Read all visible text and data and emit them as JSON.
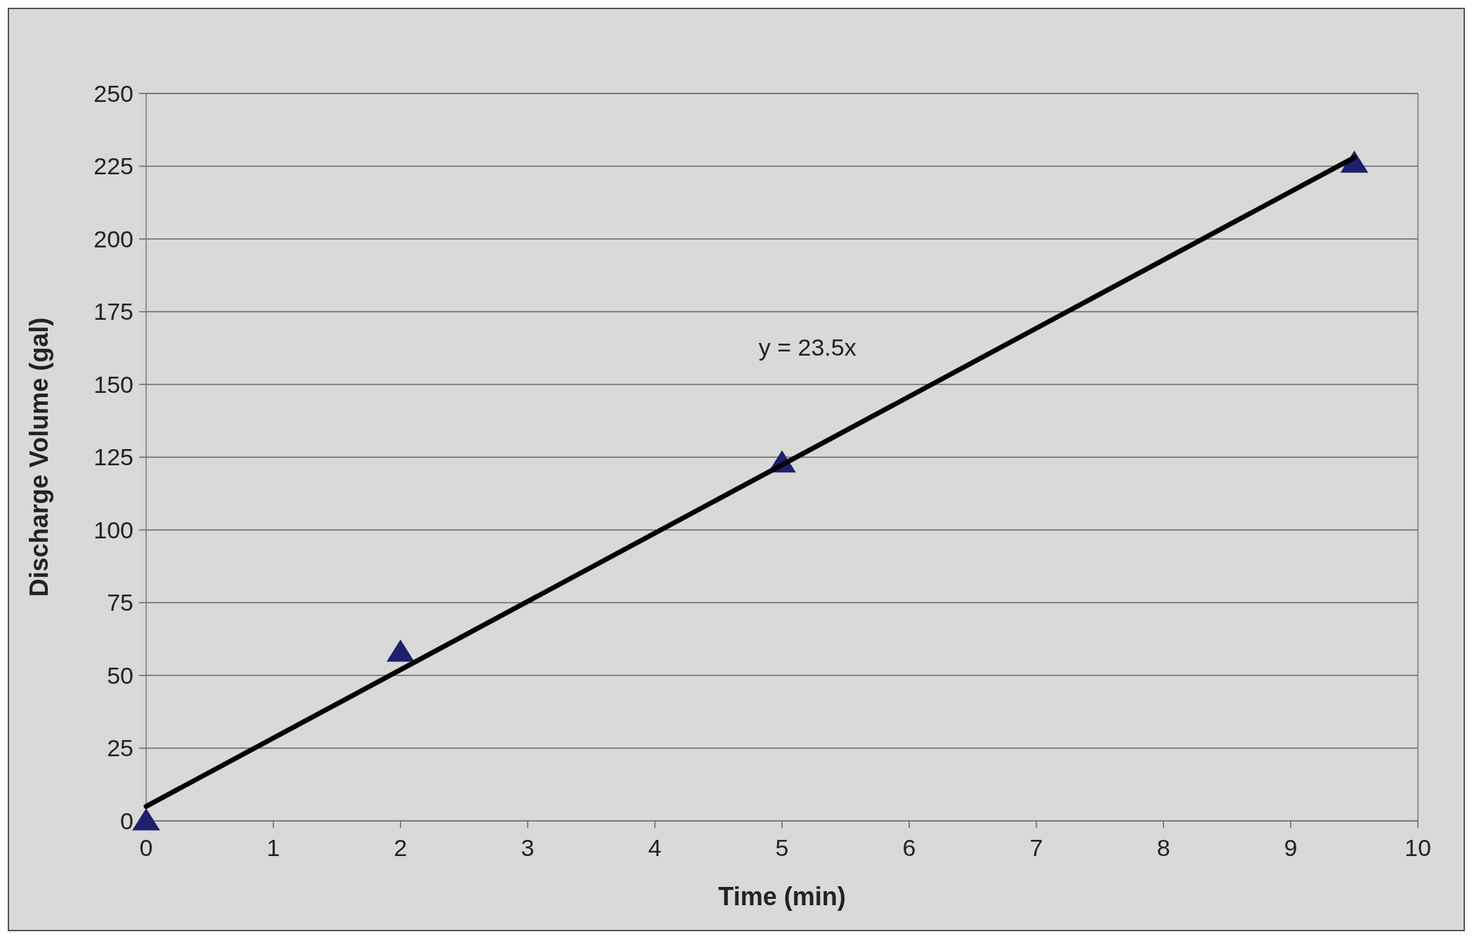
{
  "chart_data": {
    "type": "scatter",
    "xlabel": "Time (min)",
    "ylabel": "Discharge Volume (gal)",
    "xlim": [
      0,
      10
    ],
    "xticks": [
      0,
      1,
      2,
      3,
      4,
      5,
      6,
      7,
      8,
      9,
      10
    ],
    "ylim": [
      0,
      250
    ],
    "yticks": [
      0,
      25,
      50,
      75,
      100,
      125,
      150,
      175,
      200,
      225,
      250
    ],
    "grid": "y",
    "marker": "triangle",
    "series": [
      {
        "color": "#1f1f6e",
        "x": [
          0,
          2,
          5,
          9.5
        ],
        "values": [
          0,
          58,
          123,
          226
        ]
      },
      {
        "type": "line",
        "color": "#000000",
        "x": [
          0,
          9.5
        ],
        "values": [
          5,
          228
        ],
        "marker": "none",
        "line_style": "solid"
      }
    ],
    "annotations": [
      "y = 23.5x"
    ]
  }
}
